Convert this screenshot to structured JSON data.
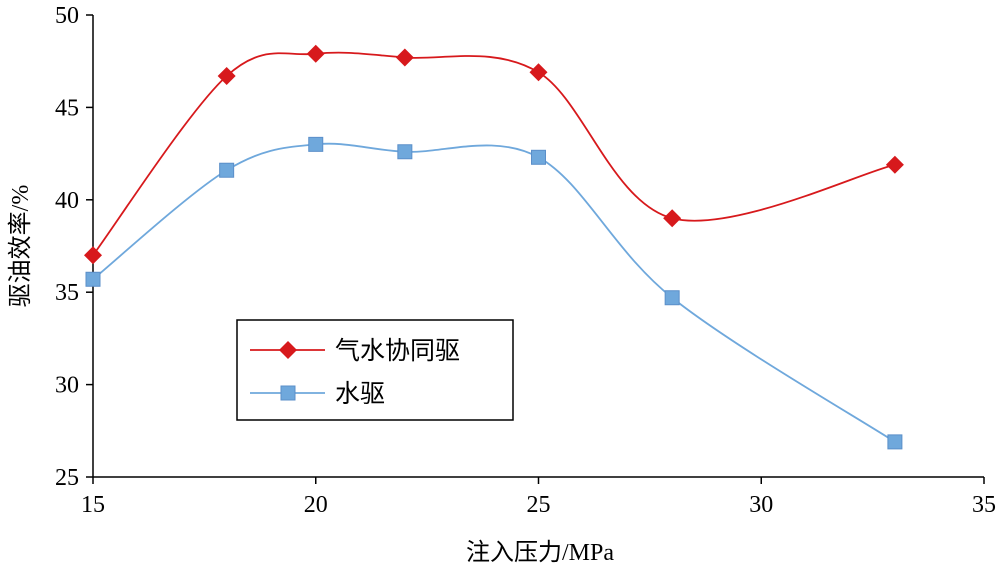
{
  "chart_data": {
    "type": "line",
    "title": "",
    "xlabel": "注入压力/MPa",
    "ylabel": "驱油效率/%",
    "xlim": [
      15,
      35
    ],
    "ylim": [
      25,
      50
    ],
    "xticks": [
      15,
      20,
      25,
      30,
      35
    ],
    "yticks": [
      25,
      30,
      35,
      40,
      45,
      50
    ],
    "grid": false,
    "legend_position": "lower-left",
    "smooth": true,
    "series": [
      {
        "name": "气水协同驱",
        "color": "#d7191c",
        "marker": "diamond",
        "x": [
          15,
          18,
          20,
          22,
          25,
          28,
          33
        ],
        "y": [
          37.0,
          46.7,
          47.9,
          47.7,
          46.9,
          39.0,
          41.9
        ]
      },
      {
        "name": "水驱",
        "color": "#6fa8dc",
        "marker": "square",
        "x": [
          15,
          18,
          20,
          22,
          25,
          28,
          33
        ],
        "y": [
          35.7,
          41.6,
          43.0,
          42.6,
          42.3,
          34.7,
          26.9
        ]
      }
    ]
  }
}
